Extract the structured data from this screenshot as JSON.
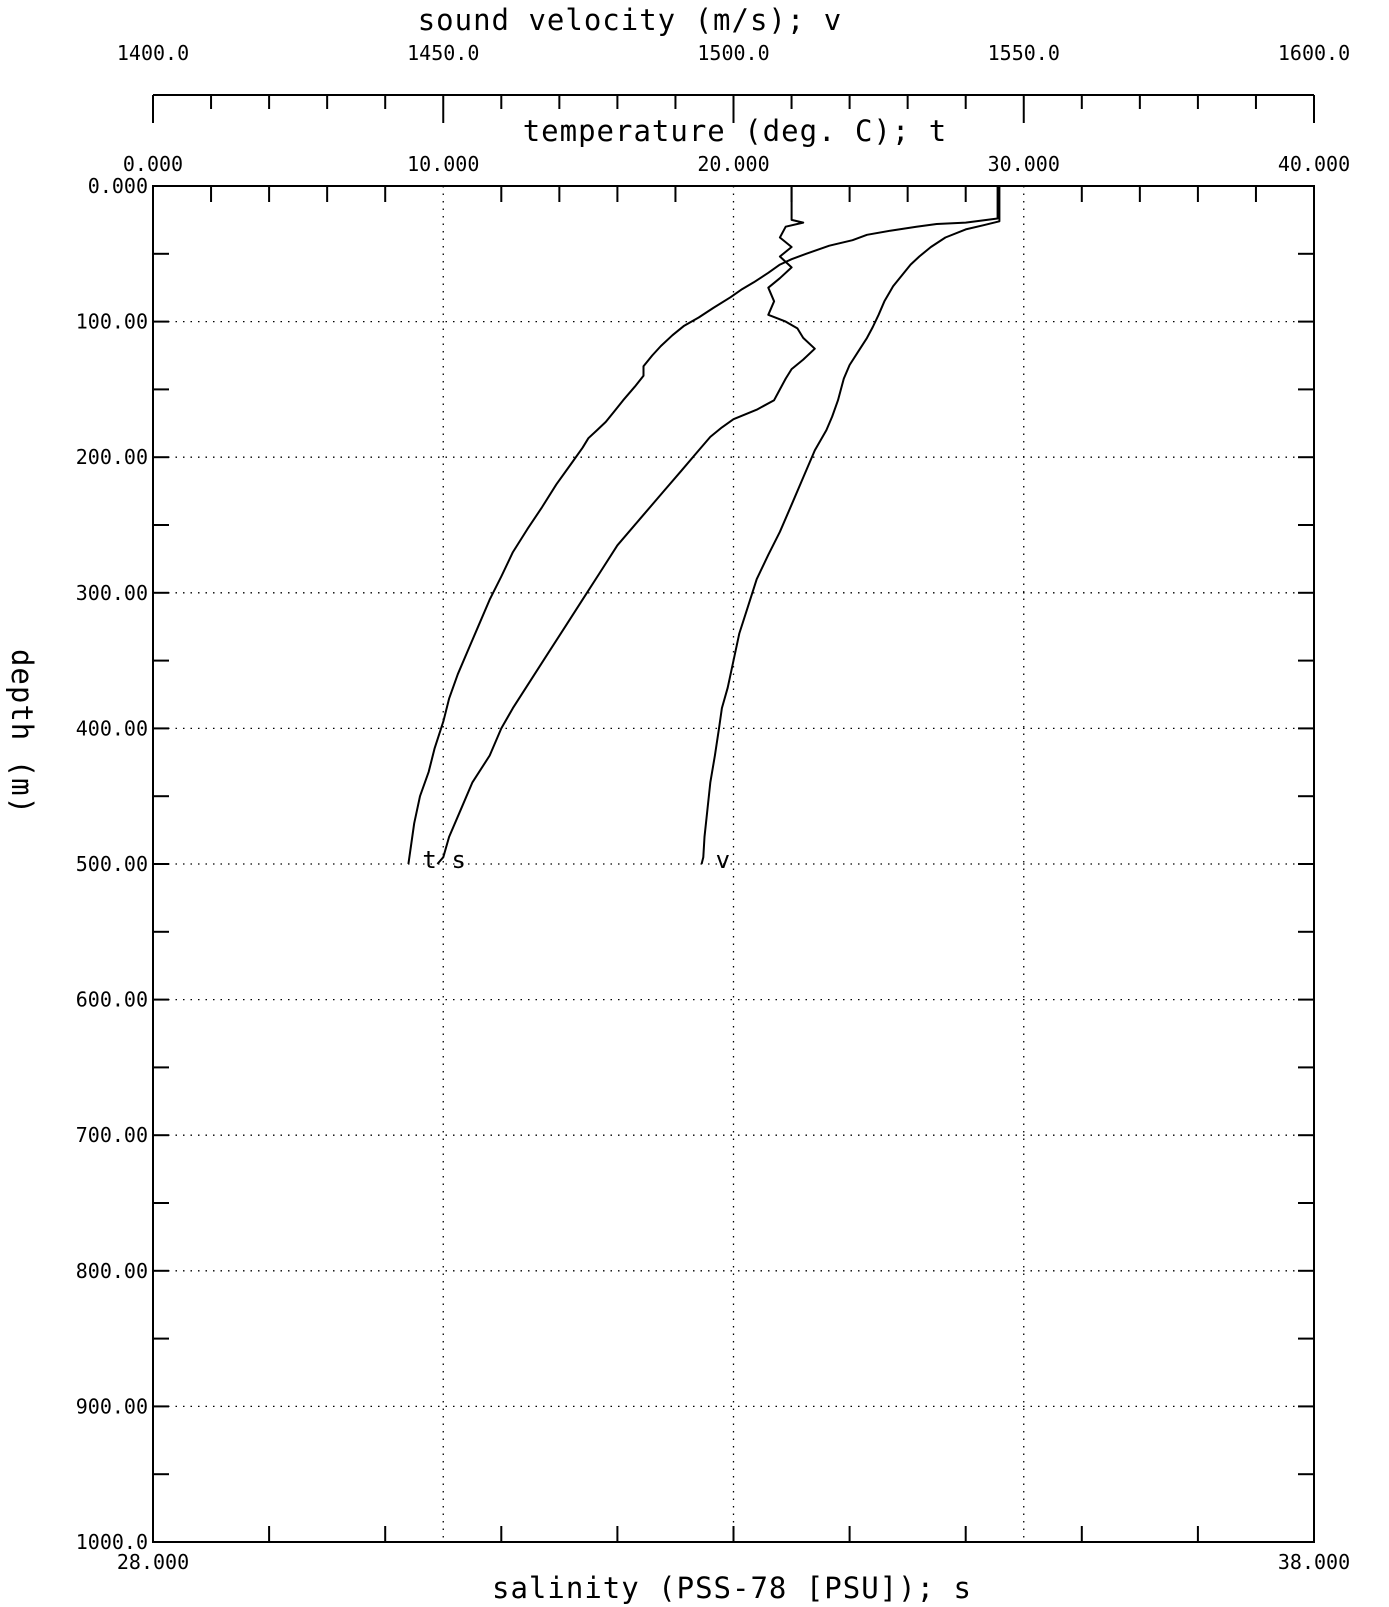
{
  "chart_data": {
    "type": "line",
    "axes": {
      "velocity": {
        "label": "sound velocity  (m/s);  v",
        "range": [
          1400.0,
          1600.0
        ],
        "tick_labels": [
          "1400.0",
          "1450.0",
          "1500.0",
          "1550.0",
          "1600.0"
        ],
        "position": "top"
      },
      "temperature": {
        "label": "temperature  (deg. C);  t",
        "range": [
          0.0,
          40.0
        ],
        "tick_labels": [
          "0.000",
          "10.000",
          "20.000",
          "30.000",
          "40.000"
        ],
        "position": "top"
      },
      "salinity": {
        "label": "salinity  (PSS-78 [PSU]);  s",
        "range": [
          28.0,
          38.0
        ],
        "tick_labels": [
          "28.000",
          "38.000"
        ],
        "position": "bottom"
      },
      "depth": {
        "label": "depth  (m)",
        "range": [
          0,
          1000
        ],
        "inverted": true,
        "tick_labels": [
          "0.000",
          "100.00",
          "200.00",
          "300.00",
          "400.00",
          "500.00",
          "600.00",
          "700.00",
          "800.00",
          "900.00",
          "1000.0"
        ],
        "position": "left"
      }
    },
    "grid": true,
    "series": [
      {
        "name": "t",
        "axis": "temperature",
        "points": [
          [
            29.1,
            0
          ],
          [
            29.1,
            24
          ],
          [
            28.0,
            27
          ],
          [
            27.0,
            28
          ],
          [
            26.3,
            30
          ],
          [
            25.4,
            33
          ],
          [
            24.6,
            36
          ],
          [
            24.1,
            40
          ],
          [
            23.3,
            44
          ],
          [
            22.5,
            50
          ],
          [
            22.0,
            54
          ],
          [
            21.6,
            58
          ],
          [
            21.2,
            64
          ],
          [
            20.7,
            71
          ],
          [
            20.3,
            76
          ],
          [
            19.9,
            82
          ],
          [
            19.3,
            90
          ],
          [
            18.8,
            97
          ],
          [
            18.3,
            103
          ],
          [
            17.9,
            110
          ],
          [
            17.5,
            118
          ],
          [
            17.2,
            125
          ],
          [
            16.9,
            133
          ],
          [
            16.9,
            140
          ],
          [
            16.6,
            148
          ],
          [
            16.2,
            158
          ],
          [
            15.9,
            166
          ],
          [
            15.6,
            174
          ],
          [
            15.3,
            180
          ],
          [
            15.0,
            186
          ],
          [
            14.8,
            193
          ],
          [
            14.4,
            205
          ],
          [
            13.9,
            220
          ],
          [
            13.4,
            237
          ],
          [
            12.9,
            253
          ],
          [
            12.4,
            270
          ],
          [
            12.0,
            288
          ],
          [
            11.6,
            305
          ],
          [
            11.2,
            325
          ],
          [
            10.9,
            340
          ],
          [
            10.5,
            360
          ],
          [
            10.2,
            378
          ],
          [
            10.0,
            395
          ],
          [
            9.7,
            415
          ],
          [
            9.5,
            432
          ],
          [
            9.2,
            450
          ],
          [
            9.0,
            470
          ],
          [
            8.9,
            485
          ],
          [
            8.8,
            500
          ]
        ]
      },
      {
        "name": "v",
        "axis": "velocity",
        "points": [
          [
            1545.8,
            0
          ],
          [
            1545.8,
            26
          ],
          [
            1543.0,
            29
          ],
          [
            1540.0,
            32
          ],
          [
            1536.5,
            38
          ],
          [
            1534.0,
            45
          ],
          [
            1532.0,
            52
          ],
          [
            1530.5,
            58
          ],
          [
            1529.0,
            66
          ],
          [
            1527.5,
            74
          ],
          [
            1526.0,
            85
          ],
          [
            1525.0,
            95
          ],
          [
            1524.0,
            104
          ],
          [
            1523.0,
            112
          ],
          [
            1521.5,
            122
          ],
          [
            1520.0,
            132
          ],
          [
            1519.0,
            142
          ],
          [
            1518.5,
            150
          ],
          [
            1518.0,
            158
          ],
          [
            1517.0,
            170
          ],
          [
            1516.0,
            180
          ],
          [
            1514.0,
            195
          ],
          [
            1512.0,
            215
          ],
          [
            1510.0,
            235
          ],
          [
            1508.0,
            255
          ],
          [
            1506.0,
            272
          ],
          [
            1504.0,
            290
          ],
          [
            1502.5,
            310
          ],
          [
            1501.0,
            330
          ],
          [
            1500.0,
            350
          ],
          [
            1499.0,
            370
          ],
          [
            1498.0,
            385
          ],
          [
            1497.5,
            400
          ],
          [
            1496.8,
            420
          ],
          [
            1496.0,
            440
          ],
          [
            1495.5,
            460
          ],
          [
            1495.0,
            480
          ],
          [
            1494.8,
            495
          ],
          [
            1494.5,
            500
          ]
        ]
      },
      {
        "name": "s",
        "axis": "salinity",
        "points": [
          [
            33.5,
            0
          ],
          [
            33.5,
            25
          ],
          [
            33.6,
            27
          ],
          [
            33.45,
            30
          ],
          [
            33.4,
            38
          ],
          [
            33.5,
            45
          ],
          [
            33.4,
            52
          ],
          [
            33.5,
            60
          ],
          [
            33.4,
            68
          ],
          [
            33.3,
            75
          ],
          [
            33.35,
            85
          ],
          [
            33.3,
            95
          ],
          [
            33.45,
            100
          ],
          [
            33.55,
            105
          ],
          [
            33.6,
            112
          ],
          [
            33.7,
            120
          ],
          [
            33.6,
            128
          ],
          [
            33.5,
            135
          ],
          [
            33.45,
            142
          ],
          [
            33.4,
            150
          ],
          [
            33.35,
            158
          ],
          [
            33.2,
            165
          ],
          [
            33.0,
            172
          ],
          [
            32.9,
            178
          ],
          [
            32.8,
            185
          ],
          [
            32.7,
            195
          ],
          [
            32.55,
            210
          ],
          [
            32.4,
            225
          ],
          [
            32.2,
            245
          ],
          [
            32.0,
            265
          ],
          [
            31.85,
            285
          ],
          [
            31.7,
            305
          ],
          [
            31.55,
            325
          ],
          [
            31.4,
            345
          ],
          [
            31.25,
            365
          ],
          [
            31.1,
            385
          ],
          [
            31.0,
            400
          ],
          [
            30.9,
            420
          ],
          [
            30.75,
            440
          ],
          [
            30.65,
            460
          ],
          [
            30.55,
            480
          ],
          [
            30.5,
            495
          ],
          [
            30.45,
            500
          ]
        ]
      }
    ]
  }
}
